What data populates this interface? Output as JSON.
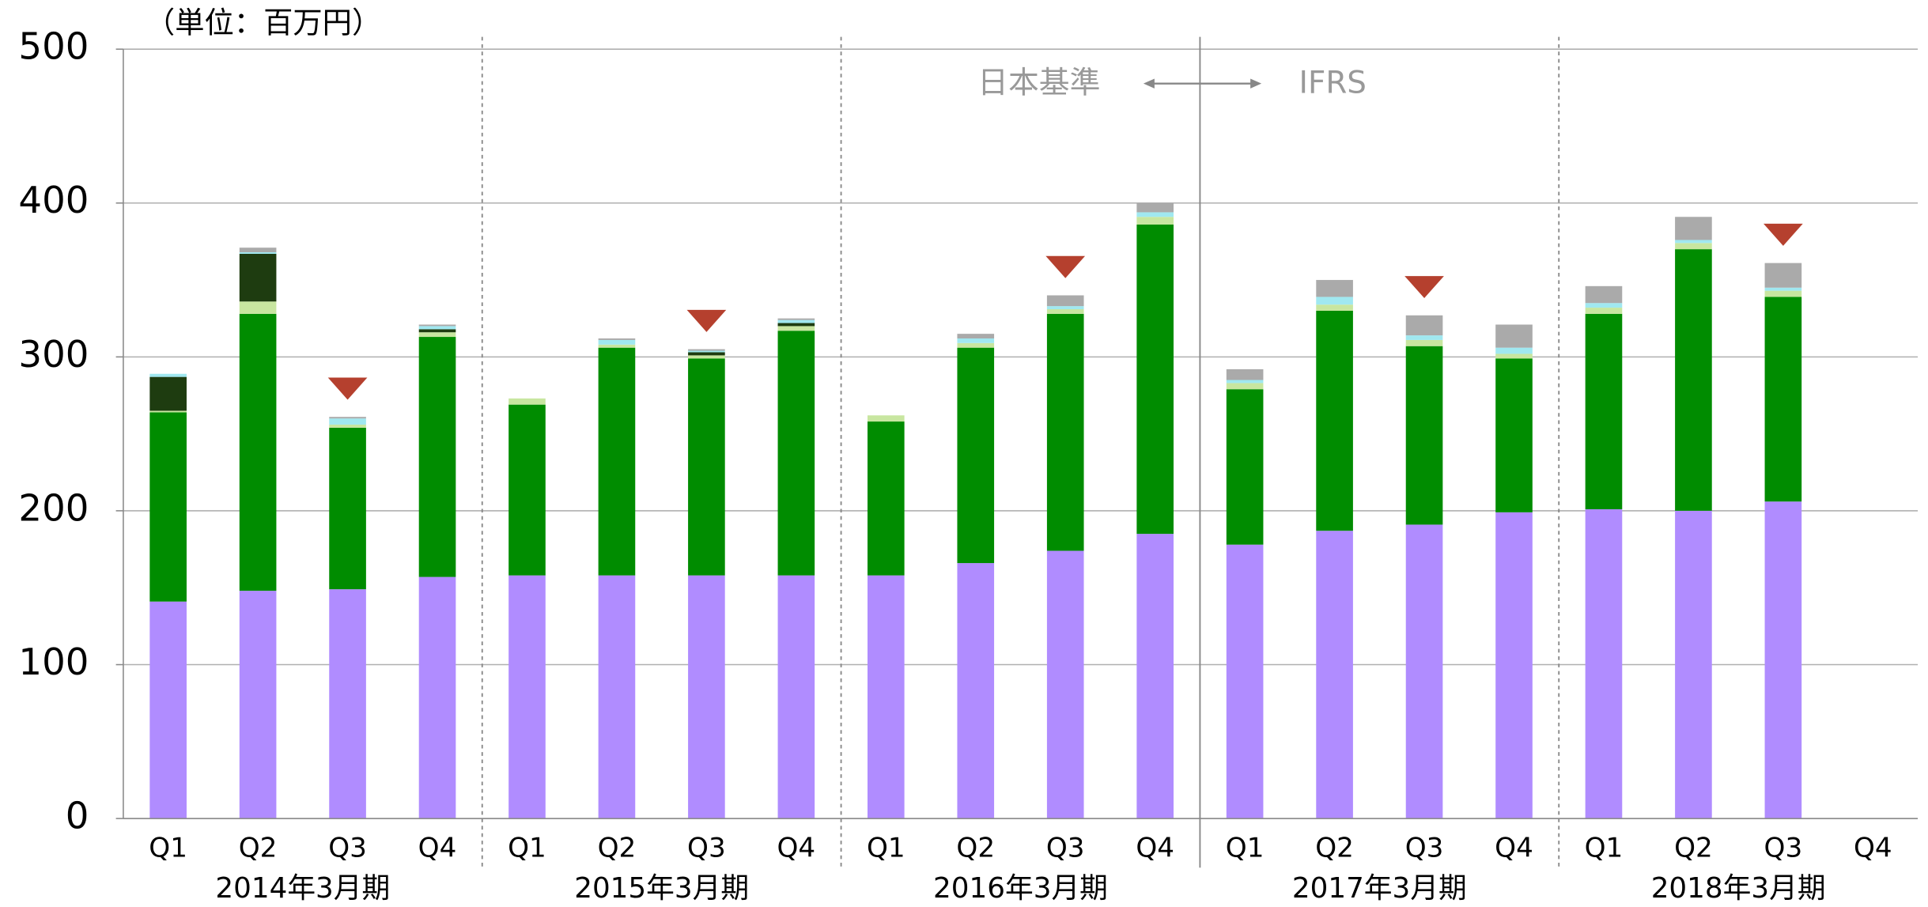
{
  "chart_data": {
    "type": "stacked_bar",
    "unit_label": "（単位：百万円）",
    "annotations": [
      "日本基準",
      "IFRS"
    ],
    "categories": [
      "Q1",
      "Q2",
      "Q3",
      "Q4",
      "Q1",
      "Q2",
      "Q3",
      "Q4",
      "Q1",
      "Q2",
      "Q3",
      "Q4",
      "Q1",
      "Q2",
      "Q3",
      "Q4",
      "Q1",
      "Q2",
      "Q3",
      "Q4"
    ],
    "groups": [
      "2014年3月期",
      "2015年3月期",
      "2016年3月期",
      "2017年3月期",
      "2018年3月期"
    ],
    "series": [
      {
        "color": "#b08cff",
        "values": [
          141,
          148,
          149,
          157,
          158,
          158,
          158,
          158,
          158,
          166,
          174,
          185,
          178,
          187,
          191,
          199,
          201,
          200,
          206,
          null
        ]
      },
      {
        "color": "#008c00",
        "values": [
          123,
          180,
          105,
          156,
          111,
          148,
          141,
          159,
          100,
          140,
          154,
          201,
          101,
          143,
          116,
          100,
          127,
          170,
          133,
          null
        ]
      },
      {
        "color": "#c8e6a0",
        "values": [
          1,
          8,
          2,
          3,
          4,
          2,
          2,
          3,
          4,
          3,
          3,
          5,
          4,
          4,
          4,
          3,
          4,
          4,
          4,
          null
        ]
      },
      {
        "color": "#1e3c10",
        "values": [
          22,
          31,
          0,
          2,
          0,
          0,
          2,
          2,
          0,
          0,
          0,
          0,
          0,
          0,
          0,
          0,
          0,
          0,
          0,
          null
        ]
      },
      {
        "color": "#a0e8f0",
        "values": [
          2,
          1,
          4,
          2,
          0,
          3,
          1,
          2,
          0,
          3,
          2,
          3,
          2,
          5,
          3,
          4,
          3,
          2,
          2,
          null
        ]
      },
      {
        "color": "#aaaaaa",
        "values": [
          0,
          3,
          1,
          1,
          0,
          1,
          1,
          1,
          0,
          3,
          7,
          6,
          7,
          11,
          13,
          15,
          11,
          15,
          16,
          null
        ]
      }
    ],
    "markers": [
      2,
      6,
      10,
      14,
      18
    ],
    "marker_color": "#b5402e",
    "ylim": [
      0,
      500
    ],
    "yticks": [
      0,
      100,
      200,
      300,
      400,
      500
    ],
    "grid": true
  }
}
